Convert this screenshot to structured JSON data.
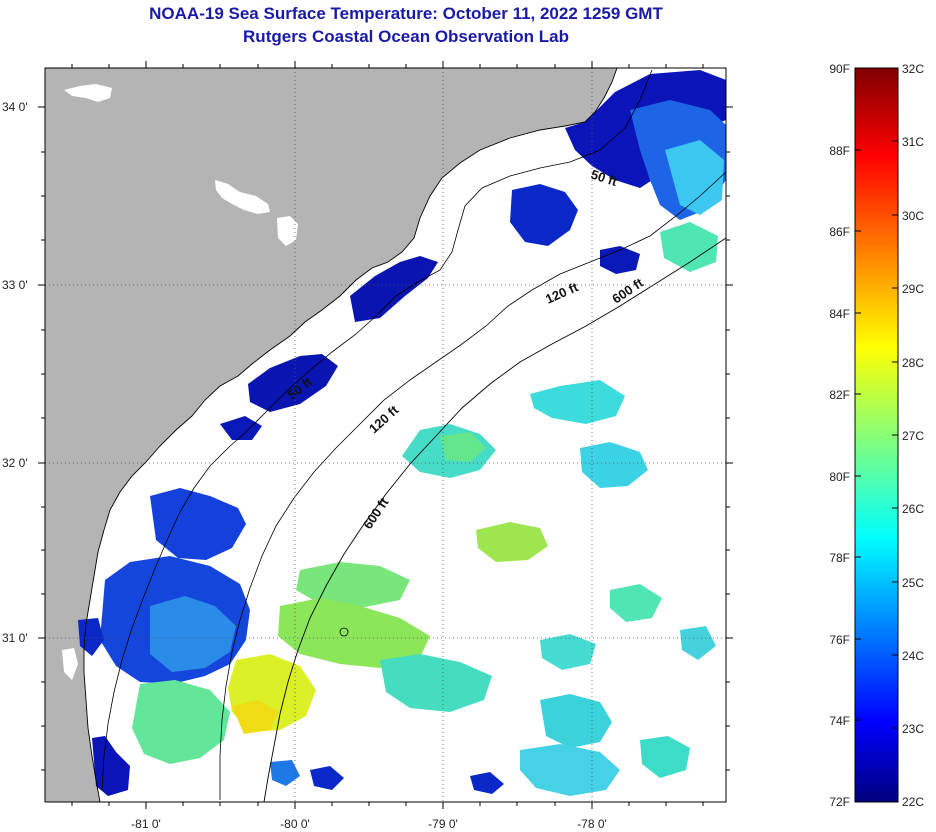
{
  "header": {
    "title": "NOAA-19 Sea Surface Temperature:  October 11, 2022 1259 GMT",
    "subtitle": "Rutgers Coastal Ocean Observation Lab"
  },
  "map": {
    "lon_labels": [
      "-81 0'",
      "-80 0'",
      "-79 0'",
      "-78 0'"
    ],
    "lat_labels": [
      "34 0'",
      "33 0'",
      "32 0'",
      "31 0'"
    ],
    "contour_labels": {
      "c50_north": "50 ft",
      "c50_mid": "50 ft",
      "c120_north": "120 ft",
      "c120_mid": "120 ft",
      "c600_north": "600 ft",
      "c600_mid": "600 ft"
    }
  },
  "colorbar": {
    "fahrenheit_labels": [
      "90F",
      "88F",
      "86F",
      "84F",
      "82F",
      "80F",
      "78F",
      "76F",
      "74F",
      "72F"
    ],
    "celsius_labels": [
      "32C",
      "31C",
      "30C",
      "29C",
      "28C",
      "27C",
      "26C",
      "25C",
      "24C",
      "23C",
      "22C"
    ]
  },
  "colors": {
    "land": "#b4b4b4",
    "title": "#1a1aa8",
    "no_data": "#ffffff"
  }
}
